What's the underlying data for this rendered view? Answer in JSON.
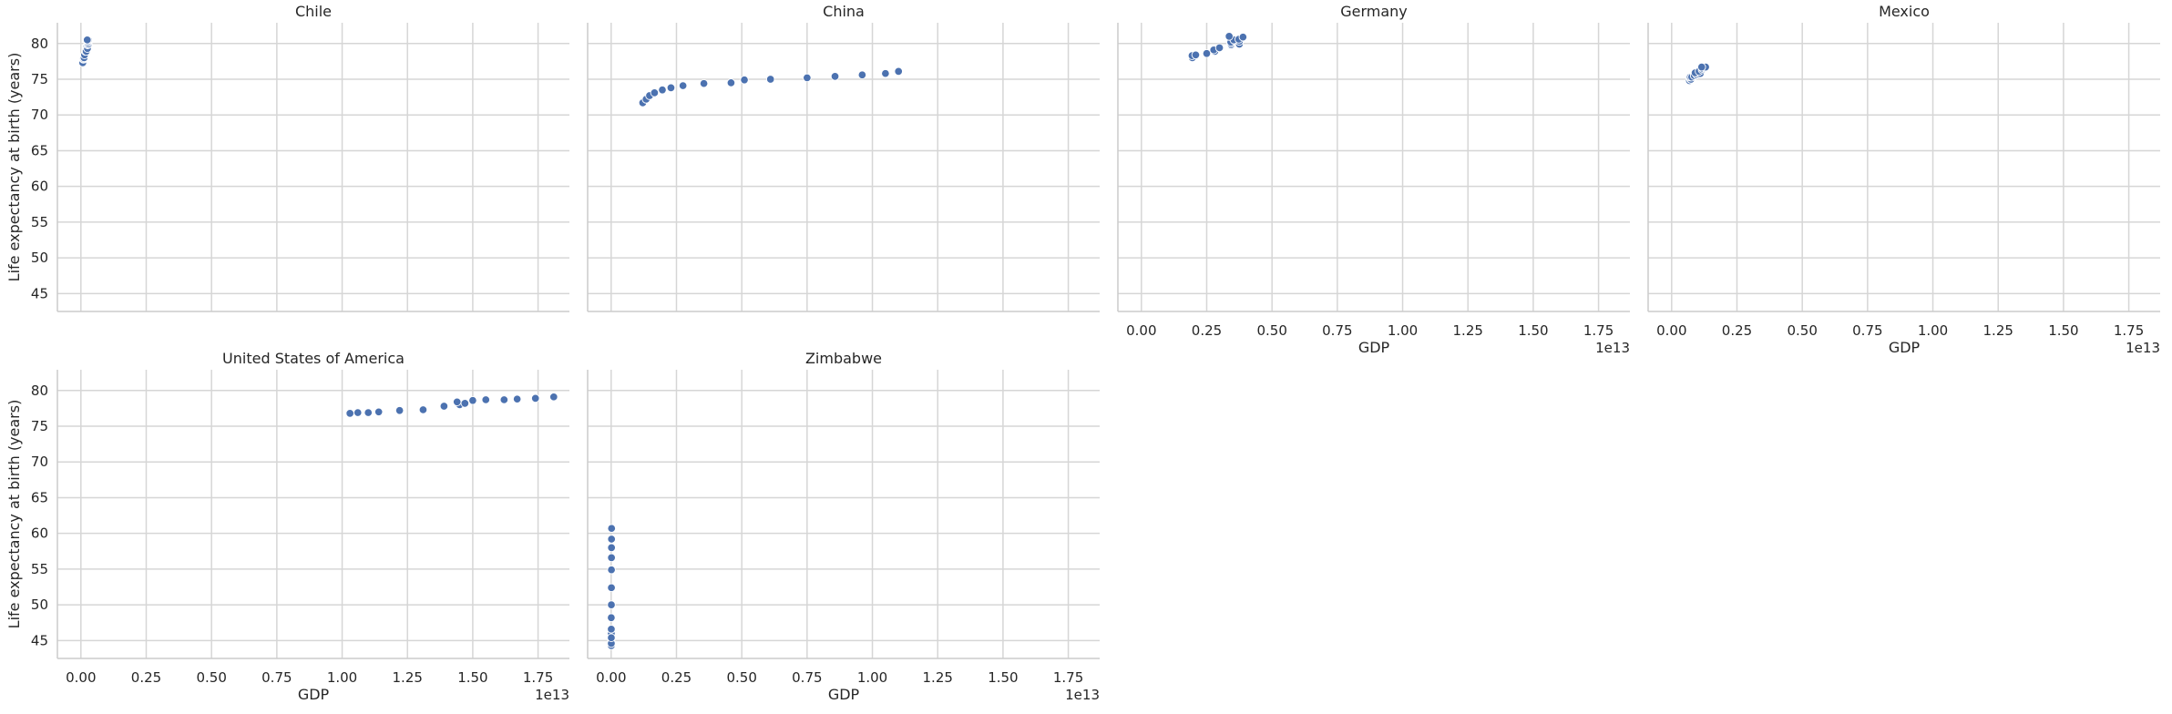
{
  "chart_data": {
    "type": "scatter",
    "xlabel": "GDP",
    "ylabel": "Life expectancy at birth (years)",
    "x_offset_label": "1e13",
    "xlim": [
      -0.09,
      1.87
    ],
    "ylim": [
      42.5,
      82.9
    ],
    "x_ticks": [
      0.0,
      0.25,
      0.5,
      0.75,
      1.0,
      1.25,
      1.5,
      1.75
    ],
    "x_tick_labels": [
      "0.00",
      "0.25",
      "0.50",
      "0.75",
      "1.00",
      "1.25",
      "1.50",
      "1.75"
    ],
    "y_ticks": [
      45,
      50,
      55,
      60,
      65,
      70,
      75,
      80
    ],
    "y_tick_labels": [
      "45",
      "50",
      "55",
      "60",
      "65",
      "70",
      "75",
      "80"
    ],
    "grid": true,
    "marker_color": "#4c72b0",
    "x_unit_note": "x values in units of 1e13",
    "facets": [
      {
        "title": "Chile",
        "x": [
          0.0077,
          0.007,
          0.0095,
          0.0099,
          0.0123,
          0.014,
          0.0173,
          0.0205,
          0.0222,
          0.0251,
          0.0257,
          0.0285,
          0.0267,
          0.0269,
          0.0278,
          0.0243
        ],
        "y": [
          77.3,
          77.3,
          77.8,
          77.9,
          78.0,
          78.4,
          78.9,
          78.9,
          79.6,
          79.3,
          79.8,
          79.9,
          80.1,
          80.3,
          80.5,
          80.5
        ]
      },
      {
        "title": "China",
        "x": [
          0.121,
          0.134,
          0.147,
          0.166,
          0.196,
          0.229,
          0.275,
          0.355,
          0.459,
          0.51,
          0.61,
          0.75,
          0.857,
          0.961,
          1.05,
          1.1
        ],
        "y": [
          71.7,
          72.2,
          72.7,
          73.1,
          73.5,
          73.8,
          74.1,
          74.4,
          74.5,
          74.9,
          75.0,
          75.2,
          75.4,
          75.6,
          75.8,
          76.1
        ]
      },
      {
        "title": "Germany",
        "x": [
          0.195,
          0.194,
          0.208,
          0.25,
          0.281,
          0.277,
          0.299,
          0.343,
          0.375,
          0.342,
          0.342,
          0.375,
          0.354,
          0.373,
          0.389,
          0.336
        ],
        "y": [
          78.0,
          78.3,
          78.4,
          78.6,
          78.9,
          79.1,
          79.4,
          79.8,
          79.9,
          80.0,
          80.2,
          80.3,
          80.5,
          80.6,
          80.9,
          81.0
        ]
      },
      {
        "title": "Mexico",
        "x": [
          0.0683,
          0.0725,
          0.0742,
          0.0713,
          0.077,
          0.0866,
          0.0965,
          0.104,
          0.11,
          0.09,
          0.105,
          0.117,
          0.119,
          0.126,
          0.13,
          0.115
        ],
        "y": [
          74.8,
          75.0,
          75.0,
          75.3,
          75.3,
          75.5,
          75.6,
          75.7,
          75.8,
          75.9,
          76.1,
          76.3,
          76.5,
          76.6,
          76.7,
          76.7
        ]
      },
      {
        "title": "United States of America",
        "x": [
          1.03,
          1.06,
          1.1,
          1.14,
          1.22,
          1.31,
          1.39,
          1.45,
          1.47,
          1.44,
          1.5,
          1.55,
          1.62,
          1.67,
          1.74,
          1.81
        ],
        "y": [
          76.8,
          76.9,
          76.9,
          77.0,
          77.2,
          77.3,
          77.8,
          78.0,
          78.2,
          78.4,
          78.6,
          78.7,
          78.7,
          78.8,
          78.9,
          79.1
        ]
      },
      {
        "title": "Zimbabwe",
        "x": [
          0.0006,
          0.0007,
          0.0006,
          0.0006,
          0.0005,
          0.0006,
          0.0006,
          0.0005,
          0.0004,
          0.0008,
          0.001,
          0.0011,
          0.0012,
          0.0013,
          0.0014,
          0.0016
        ],
        "y": [
          46.0,
          45.3,
          44.8,
          44.5,
          44.3,
          44.6,
          45.4,
          46.6,
          48.2,
          50.0,
          52.4,
          54.9,
          56.6,
          58.0,
          59.2,
          60.7
        ]
      }
    ]
  }
}
